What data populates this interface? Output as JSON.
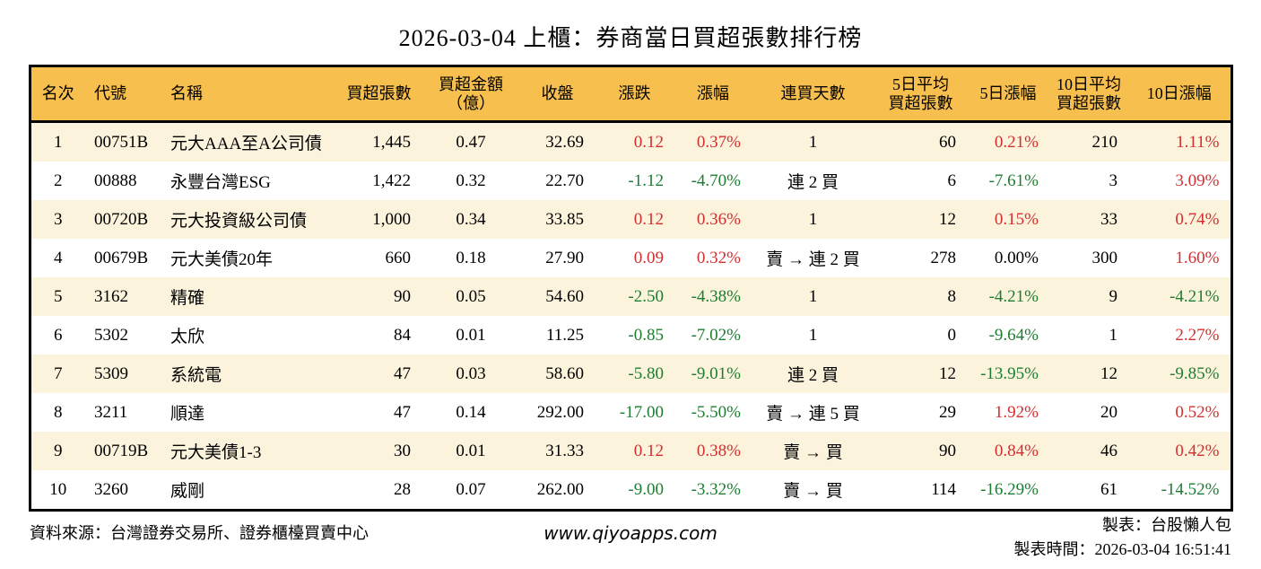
{
  "title": "2026-03-04 上櫃：券商當日買超張數排行榜",
  "colors": {
    "header_bg": "#f7bf4e",
    "stripe_bg": "#fbf3dc",
    "up_red": "#d32f2f",
    "down_green": "#1e7d32",
    "border": "#000000"
  },
  "chart_data": {
    "type": "table",
    "columns": [
      {
        "key": "rank",
        "label": "名次"
      },
      {
        "key": "code",
        "label": "代號"
      },
      {
        "key": "name",
        "label": "名稱"
      },
      {
        "key": "buy_volume",
        "label": "買超張數"
      },
      {
        "key": "buy_amount",
        "label": "買超金額",
        "label2": "（億）"
      },
      {
        "key": "close",
        "label": "收盤"
      },
      {
        "key": "change",
        "label": "漲跌"
      },
      {
        "key": "change_pct",
        "label": "漲幅"
      },
      {
        "key": "streak",
        "label": "連買天數"
      },
      {
        "key": "avg5",
        "label": "5日平均",
        "label2": "買超張數"
      },
      {
        "key": "pct5",
        "label": "5日漲幅"
      },
      {
        "key": "avg10",
        "label": "10日平均",
        "label2": "買超張數"
      },
      {
        "key": "pct10",
        "label": "10日漲幅"
      }
    ],
    "rows": [
      {
        "rank": "1",
        "code": "00751B",
        "name": "元大AAA至A公司債",
        "buy_volume": "1,445",
        "buy_amount": "0.47",
        "close": "32.69",
        "change": "0.12",
        "change_color": "red",
        "change_pct": "0.37%",
        "change_pct_color": "red",
        "streak": "1",
        "avg5": "60",
        "pct5": "0.21%",
        "pct5_color": "red",
        "avg10": "210",
        "pct10": "1.11%",
        "pct10_color": "red"
      },
      {
        "rank": "2",
        "code": "00888",
        "name": "永豐台灣ESG",
        "buy_volume": "1,422",
        "buy_amount": "0.32",
        "close": "22.70",
        "change": "-1.12",
        "change_color": "green",
        "change_pct": "-4.70%",
        "change_pct_color": "green",
        "streak": "連 2 買",
        "avg5": "6",
        "pct5": "-7.61%",
        "pct5_color": "green",
        "avg10": "3",
        "pct10": "3.09%",
        "pct10_color": "red"
      },
      {
        "rank": "3",
        "code": "00720B",
        "name": "元大投資級公司債",
        "buy_volume": "1,000",
        "buy_amount": "0.34",
        "close": "33.85",
        "change": "0.12",
        "change_color": "red",
        "change_pct": "0.36%",
        "change_pct_color": "red",
        "streak": "1",
        "avg5": "12",
        "pct5": "0.15%",
        "pct5_color": "red",
        "avg10": "33",
        "pct10": "0.74%",
        "pct10_color": "red"
      },
      {
        "rank": "4",
        "code": "00679B",
        "name": "元大美債20年",
        "buy_volume": "660",
        "buy_amount": "0.18",
        "close": "27.90",
        "change": "0.09",
        "change_color": "red",
        "change_pct": "0.32%",
        "change_pct_color": "red",
        "streak": "賣 → 連 2 買",
        "avg5": "278",
        "pct5": "0.00%",
        "pct5_color": "black",
        "avg10": "300",
        "pct10": "1.60%",
        "pct10_color": "red"
      },
      {
        "rank": "5",
        "code": "3162",
        "name": "精確",
        "buy_volume": "90",
        "buy_amount": "0.05",
        "close": "54.60",
        "change": "-2.50",
        "change_color": "green",
        "change_pct": "-4.38%",
        "change_pct_color": "green",
        "streak": "1",
        "avg5": "8",
        "pct5": "-4.21%",
        "pct5_color": "green",
        "avg10": "9",
        "pct10": "-4.21%",
        "pct10_color": "green"
      },
      {
        "rank": "6",
        "code": "5302",
        "name": "太欣",
        "buy_volume": "84",
        "buy_amount": "0.01",
        "close": "11.25",
        "change": "-0.85",
        "change_color": "green",
        "change_pct": "-7.02%",
        "change_pct_color": "green",
        "streak": "1",
        "avg5": "0",
        "pct5": "-9.64%",
        "pct5_color": "green",
        "avg10": "1",
        "pct10": "2.27%",
        "pct10_color": "red"
      },
      {
        "rank": "7",
        "code": "5309",
        "name": "系統電",
        "buy_volume": "47",
        "buy_amount": "0.03",
        "close": "58.60",
        "change": "-5.80",
        "change_color": "green",
        "change_pct": "-9.01%",
        "change_pct_color": "green",
        "streak": "連 2 買",
        "avg5": "12",
        "pct5": "-13.95%",
        "pct5_color": "green",
        "avg10": "12",
        "pct10": "-9.85%",
        "pct10_color": "green"
      },
      {
        "rank": "8",
        "code": "3211",
        "name": "順達",
        "buy_volume": "47",
        "buy_amount": "0.14",
        "close": "292.00",
        "change": "-17.00",
        "change_color": "green",
        "change_pct": "-5.50%",
        "change_pct_color": "green",
        "streak": "賣 → 連 5 買",
        "avg5": "29",
        "pct5": "1.92%",
        "pct5_color": "red",
        "avg10": "20",
        "pct10": "0.52%",
        "pct10_color": "red"
      },
      {
        "rank": "9",
        "code": "00719B",
        "name": "元大美債1-3",
        "buy_volume": "30",
        "buy_amount": "0.01",
        "close": "31.33",
        "change": "0.12",
        "change_color": "red",
        "change_pct": "0.38%",
        "change_pct_color": "red",
        "streak": "賣 → 買",
        "avg5": "90",
        "pct5": "0.84%",
        "pct5_color": "red",
        "avg10": "46",
        "pct10": "0.42%",
        "pct10_color": "red"
      },
      {
        "rank": "10",
        "code": "3260",
        "name": "威剛",
        "buy_volume": "28",
        "buy_amount": "0.07",
        "close": "262.00",
        "change": "-9.00",
        "change_color": "green",
        "change_pct": "-3.32%",
        "change_pct_color": "green",
        "streak": "賣 → 買",
        "avg5": "114",
        "pct5": "-16.29%",
        "pct5_color": "green",
        "avg10": "61",
        "pct10": "-14.52%",
        "pct10_color": "green"
      }
    ]
  },
  "footer": {
    "source": "資料來源：台灣證券交易所、證券櫃檯買賣中心",
    "website": "www.qiyoapps.com",
    "maker": "製表：台股懶人包",
    "timestamp": "製表時間：2026-03-04 16:51:41"
  }
}
